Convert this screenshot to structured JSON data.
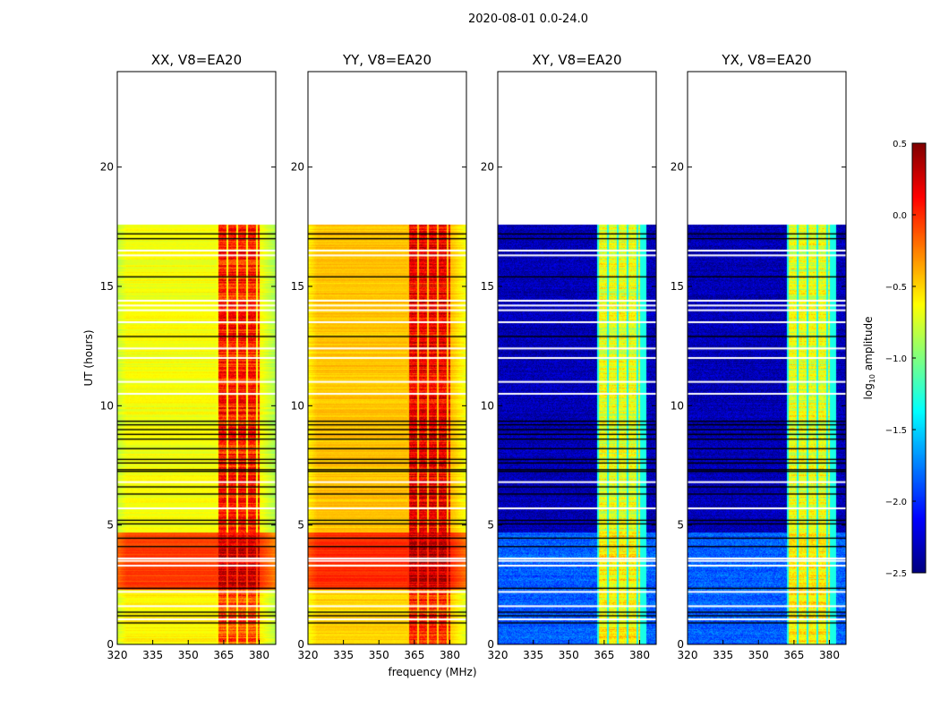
{
  "chart_data": {
    "type": "heatmap",
    "title": "2020-08-01 0.0-24.0",
    "xlabel": "frequency (MHz)",
    "ylabel": "UT (hours)",
    "xlim": [
      320,
      387
    ],
    "ylim": [
      0,
      24
    ],
    "xticks": [
      "320",
      "335",
      "350",
      "365",
      "380"
    ],
    "yticks": [
      "0",
      "5",
      "10",
      "15",
      "20"
    ],
    "colorbar": {
      "label": "log10 amplitude",
      "label_base": "log",
      "label_sub": "10",
      "label_rest": " amplitude",
      "range": [
        -2.5,
        0.5
      ],
      "ticks": [
        "0.5",
        "0.0",
        "−0.5",
        "−1.0",
        "−1.5",
        "−2.0",
        "−2.5"
      ],
      "colormap": "jet"
    },
    "data_end_hour": 17.6,
    "rfi_band_mhz": [
      362,
      380
    ],
    "black_flag_hours": [
      0.9,
      1.2,
      1.35,
      2.35,
      4.1,
      4.45,
      5.05,
      5.2,
      6.3,
      6.6,
      7.25,
      7.32,
      7.6,
      7.75,
      8.2,
      8.6,
      8.8,
      9.0,
      9.2,
      9.35,
      12.9,
      15.4,
      17.0,
      17.2
    ],
    "white_gap_hours": [
      1.05,
      1.6,
      2.2,
      3.3,
      3.5,
      3.6,
      5.7,
      6.8,
      10.5,
      11.0,
      12.0,
      12.4,
      13.5,
      14.0,
      14.2,
      14.4,
      16.3,
      16.5
    ],
    "panels": [
      {
        "title": "XX, V8=EA20",
        "segments": [
          [
            0,
            2.3,
            -0.6,
            -0.1
          ],
          [
            2.3,
            4.7,
            -0.05,
            0.25
          ],
          [
            4.7,
            17.6,
            -0.65,
            0.05
          ]
        ]
      },
      {
        "title": "YY, V8=EA20",
        "segments": [
          [
            0,
            2.3,
            -0.5,
            0.0
          ],
          [
            2.3,
            4.7,
            0.0,
            0.3
          ],
          [
            4.7,
            17.6,
            -0.45,
            0.15
          ]
        ]
      },
      {
        "title": "XY, V8=EA20",
        "segments": [
          [
            0,
            4.7,
            -1.85,
            -0.6
          ],
          [
            4.7,
            17.6,
            -2.35,
            -0.7
          ]
        ]
      },
      {
        "title": "YX, V8=EA20",
        "segments": [
          [
            0,
            4.7,
            -1.85,
            -0.6
          ],
          [
            4.7,
            17.6,
            -2.35,
            -0.7
          ]
        ]
      }
    ]
  }
}
